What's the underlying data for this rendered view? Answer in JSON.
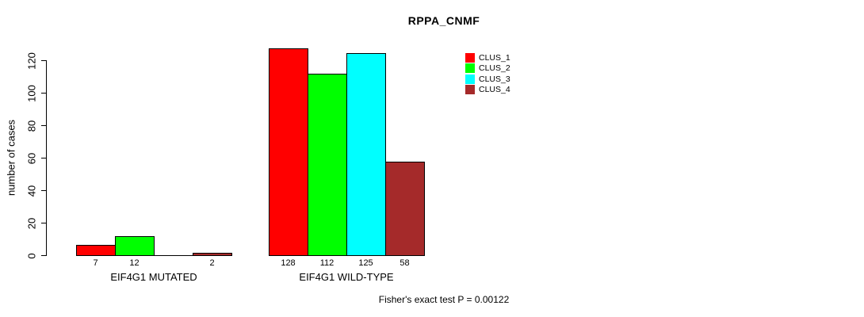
{
  "chart_data": {
    "type": "bar",
    "title": "RPPA_CNMF",
    "ylabel": "number of cases",
    "ylim": [
      0,
      130
    ],
    "yticks": [
      0,
      20,
      40,
      60,
      80,
      100,
      120
    ],
    "grid": false,
    "legend_position": "top-right",
    "legend": [
      {
        "label": "CLUS_1",
        "color": "#ff0000"
      },
      {
        "label": "CLUS_2",
        "color": "#00ff00"
      },
      {
        "label": "CLUS_3",
        "color": "#00ffff"
      },
      {
        "label": "CLUS_4",
        "color": "#a52a2a"
      }
    ],
    "groups": [
      {
        "label": "EIF4G1 MUTATED",
        "values": [
          7,
          12,
          0,
          2
        ],
        "bar_labels": [
          "7",
          "12",
          "",
          "2"
        ]
      },
      {
        "label": "EIF4G1 WILD-TYPE",
        "values": [
          128,
          112,
          125,
          58
        ],
        "bar_labels": [
          "128",
          "112",
          "125",
          "58"
        ]
      }
    ],
    "footnote": "Fisher's exact test P = 0.00122"
  }
}
